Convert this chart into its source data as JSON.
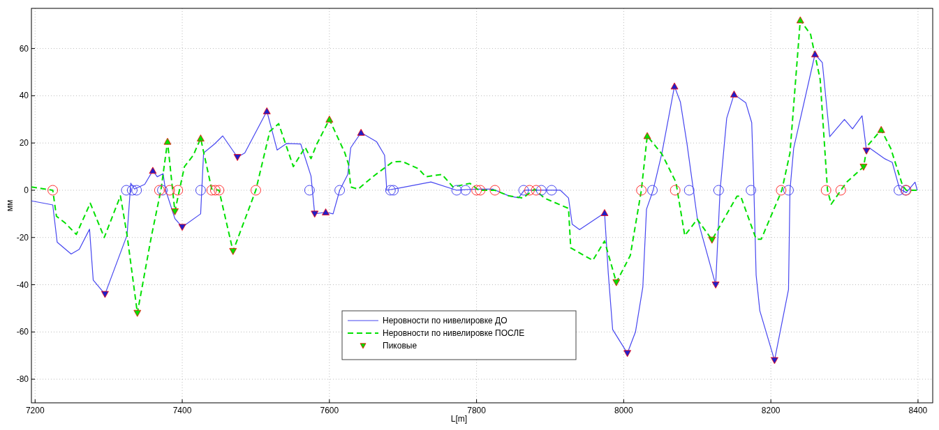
{
  "chart_data": {
    "type": "line",
    "xlabel": "L[m]",
    "ylabel": "мм",
    "xlim": [
      7195,
      8420
    ],
    "ylim": [
      -90,
      77
    ],
    "xticks": [
      7200,
      7400,
      7600,
      7800,
      8000,
      8200,
      8400
    ],
    "yticks": [
      -80,
      -60,
      -40,
      -20,
      0,
      20,
      40,
      60
    ],
    "grid": true,
    "legend": "bottom",
    "series": [
      {
        "name": "Неровности по нивелировке ДО",
        "color": "#4646f0",
        "line_style": "solid",
        "x": [
          7195,
          7224,
          7230,
          7249,
          7260,
          7274,
          7279,
          7295,
          7325,
          7330,
          7335,
          7349,
          7360,
          7366,
          7374,
          7377,
          7390,
          7400,
          7425,
          7429,
          7444,
          7455,
          7475,
          7485,
          7515,
          7529,
          7542,
          7561,
          7575,
          7580,
          7595,
          7605,
          7614,
          7625,
          7629,
          7643,
          7664,
          7675,
          7678,
          7696,
          7738,
          7773,
          7800,
          7822,
          7844,
          7857,
          7865,
          7914,
          7925,
          7930,
          7940,
          7974,
          7979,
          7985,
          8005,
          8016,
          8026,
          8031,
          8040,
          8052,
          8069,
          8077,
          8086,
          8100,
          8125,
          8131,
          8140,
          8150,
          8166,
          8174,
          8177,
          8180,
          8185,
          8205,
          8224,
          8226,
          8231,
          8260,
          8270,
          8280,
          8300,
          8311,
          8324,
          8330,
          8335,
          8355,
          8365,
          8375,
          8384,
          8396,
          8399
        ],
        "values": [
          -4.5,
          -6.2,
          -22,
          -27,
          -25,
          -16.5,
          -38,
          -44,
          -19,
          3,
          0.5,
          2.5,
          8.3,
          5.7,
          7,
          0.5,
          -12,
          -15.6,
          -10,
          15.8,
          19.6,
          23,
          14,
          15.8,
          33.5,
          17,
          19.8,
          19.6,
          6,
          -10,
          -9.3,
          -10,
          0,
          6.7,
          18,
          24.4,
          20.6,
          14.8,
          0,
          1,
          3.5,
          0,
          0.5,
          0.5,
          -2.4,
          -3.2,
          0,
          0,
          -3.3,
          -14.4,
          -16.7,
          -9.6,
          -35,
          -59,
          -69,
          -60,
          -41,
          -8,
          0,
          15.8,
          44,
          37.4,
          19.7,
          -11.8,
          -40,
          0,
          30.5,
          40.6,
          37,
          28.6,
          0,
          -36,
          -51,
          -72,
          -42,
          0,
          17.7,
          57.6,
          54,
          22.7,
          30,
          26,
          31.5,
          16.7,
          17.7,
          13.3,
          11.8,
          0.5,
          -1,
          3.4,
          0
        ]
      },
      {
        "name": "Неровности по нивелировке ПОСЛЕ",
        "color": "#00e000",
        "line_style": "dashed",
        "x": [
          7195,
          7224,
          7229,
          7241,
          7256,
          7275,
          7294,
          7316,
          7325,
          7339,
          7358,
          7371,
          7380,
          7390,
          7403,
          7415,
          7425,
          7440,
          7450,
          7469,
          7500,
          7519,
          7531,
          7551,
          7567,
          7575,
          7583,
          7600,
          7621,
          7626,
          7629,
          7639,
          7661,
          7686,
          7699,
          7721,
          7731,
          7753,
          7768,
          7791,
          7803,
          7825,
          7844,
          7863,
          7879,
          7892,
          7925,
          7928,
          7958,
          7974,
          7990,
          8009,
          8024,
          8032,
          8052,
          8071,
          8083,
          8100,
          8120,
          8154,
          8159,
          8180,
          8187,
          8215,
          8226,
          8240,
          8254,
          8267,
          8277,
          8282,
          8303,
          8326,
          8331,
          8350,
          8363,
          8379,
          8384,
          8399
        ],
        "values": [
          1.4,
          0,
          -11,
          -13.9,
          -18.7,
          -5.5,
          -20,
          -2.4,
          -19,
          -52,
          -19.6,
          0,
          20.6,
          -9,
          10,
          14.8,
          22,
          0.5,
          0,
          -25.8,
          0,
          24.9,
          28.2,
          10,
          18.2,
          13.4,
          19.6,
          30,
          15.8,
          11,
          1.4,
          0.5,
          6.2,
          12,
          12.2,
          9.1,
          5.7,
          6.7,
          1.4,
          2.9,
          0,
          0,
          -2.4,
          -3.3,
          0.5,
          -3.3,
          -7.7,
          -24.4,
          -29.7,
          -21.5,
          -39,
          -27.6,
          0,
          23,
          15.3,
          3.4,
          -19.2,
          -12.3,
          -21,
          -2.5,
          -2.5,
          -20.7,
          -20.7,
          0,
          15.8,
          72,
          66,
          47,
          0,
          -5.9,
          3.4,
          9.9,
          18.7,
          25.6,
          17.7,
          2,
          0,
          0
        ]
      },
      {
        "name": "Пиковые",
        "type": "scatter",
        "marker": "triangle-down",
        "color": "#00e000",
        "x": [
          7339,
          7390,
          7469,
          7990,
          8120,
          8326
        ],
        "values": [
          -52,
          -9,
          -25.8,
          -39,
          -21,
          9.9
        ]
      },
      {
        "type": "scatter",
        "marker": "triangle",
        "color": "#00e000",
        "x": [
          7380,
          7425,
          7600,
          8032,
          8240,
          8350
        ],
        "values": [
          20.6,
          22,
          30,
          23,
          72,
          25.6
        ]
      },
      {
        "type": "scatter",
        "marker": "triangle",
        "color": "#2020c8",
        "x": [
          7360,
          7515,
          7595,
          7643,
          7974,
          8069,
          8150,
          8260
        ],
        "values": [
          8.3,
          33.5,
          -9.3,
          24.4,
          -9.6,
          44,
          40.6,
          57.6
        ]
      },
      {
        "type": "scatter",
        "marker": "triangle-down",
        "color": "#2020c8",
        "x": [
          7295,
          7400,
          7475,
          7580,
          8005,
          8125,
          8205,
          8330
        ],
        "values": [
          -44,
          -15.6,
          14,
          -10,
          -69,
          -40,
          -72,
          16.7
        ]
      },
      {
        "type": "scatter",
        "marker": "circle",
        "color": "#4646f0",
        "x": [
          7324,
          7332,
          7338,
          7373,
          7425,
          7573,
          7614,
          7683,
          7687,
          7773,
          7785,
          7864,
          7888,
          7902,
          8039,
          8089,
          8129,
          8173,
          8224,
          8374,
          8383
        ],
        "values": [
          0,
          0,
          0,
          0,
          0,
          0,
          0,
          0,
          0,
          0,
          0,
          0,
          0,
          0,
          0,
          0,
          0,
          0,
          0,
          0,
          0
        ]
      },
      {
        "type": "scatter",
        "marker": "circle",
        "color": "#ff3030",
        "x": [
          7224,
          7369,
          7383,
          7394,
          7440,
          7445,
          7450,
          7500,
          7800,
          7805,
          7825,
          7872,
          7881,
          8024,
          8070,
          8214,
          8275,
          8295,
          8384
        ],
        "values": [
          0,
          0,
          0,
          0,
          0,
          0,
          0,
          0,
          0,
          0,
          0,
          0,
          0,
          0,
          0,
          0,
          0,
          0,
          0
        ]
      }
    ]
  }
}
